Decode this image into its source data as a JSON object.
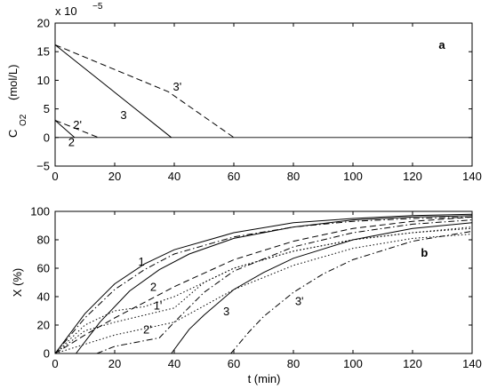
{
  "chart_data": [
    {
      "type": "line",
      "panel_label": "a",
      "ylabel_main": "C",
      "ylabel_sub": "O2",
      "ylabel_unit": "(mol/L)",
      "y_multiplier": "x 10",
      "y_multiplier_exp": "−5",
      "xlim": [
        0,
        140
      ],
      "ylim": [
        -5,
        20
      ],
      "xticks": [
        "0",
        "20",
        "40",
        "60",
        "80",
        "100",
        "120",
        "140"
      ],
      "yticks": [
        "−5",
        "0",
        "5",
        "10",
        "15",
        "20"
      ],
      "xtick_values": [
        0,
        20,
        40,
        60,
        80,
        100,
        120,
        140
      ],
      "ytick_values": [
        -5,
        0,
        5,
        10,
        15,
        20
      ],
      "grid": false,
      "zero_line": true,
      "series": [
        {
          "name": "2",
          "style": "solid",
          "x": [
            0,
            6.5
          ],
          "y": [
            3,
            0
          ]
        },
        {
          "name": "2'",
          "style": "dashed",
          "x": [
            0,
            14.5
          ],
          "y": [
            3,
            0
          ]
        },
        {
          "name": "3",
          "style": "solid",
          "x": [
            0,
            39
          ],
          "y": [
            16.2,
            0
          ]
        },
        {
          "name": "3'",
          "style": "dashed",
          "x": [
            0,
            38,
            60
          ],
          "y": [
            16.2,
            8,
            0
          ]
        }
      ],
      "annotations": [
        {
          "text": "2",
          "x": 5.5,
          "y": -1.5
        },
        {
          "text": "2'",
          "x": 7.5,
          "y": 1.5
        },
        {
          "text": "3",
          "x": 23,
          "y": 3.2
        },
        {
          "text": "3'",
          "x": 41,
          "y": 8.2
        }
      ]
    },
    {
      "type": "line",
      "panel_label": "b",
      "xlabel": "t (min)",
      "ylabel": "X (%)",
      "xlim": [
        0,
        140
      ],
      "ylim": [
        0,
        100
      ],
      "xticks": [
        "0",
        "20",
        "40",
        "60",
        "80",
        "100",
        "120",
        "140"
      ],
      "yticks": [
        "0",
        "20",
        "40",
        "60",
        "80",
        "100"
      ],
      "xtick_values": [
        0,
        20,
        40,
        60,
        80,
        100,
        120,
        140
      ],
      "ytick_values": [
        0,
        20,
        40,
        60,
        80,
        100
      ],
      "grid": false,
      "series": [
        {
          "name": "1",
          "style": "solid",
          "x": [
            0,
            10,
            20,
            30,
            40,
            60,
            80,
            100,
            120,
            140
          ],
          "y": [
            0,
            28,
            49,
            63,
            73,
            85,
            92,
            95,
            97,
            98
          ]
        },
        {
          "name": "1'",
          "style": "dashdot",
          "x": [
            0,
            10,
            20,
            30,
            40,
            60,
            80,
            100,
            120,
            140
          ],
          "y": [
            0,
            25,
            45,
            59,
            70,
            82,
            89,
            93,
            95,
            96
          ]
        },
        {
          "name": "2",
          "style": "solid",
          "x": [
            7,
            15,
            25,
            35,
            45,
            60,
            80,
            100,
            120,
            140
          ],
          "y": [
            0,
            22,
            44,
            59,
            70,
            81,
            89,
            94,
            96,
            97
          ]
        },
        {
          "name": "2'",
          "style": "dashdot",
          "x": [
            14,
            20,
            30,
            35,
            40,
            50,
            60,
            80,
            100,
            120,
            140
          ],
          "y": [
            0,
            5,
            9,
            11,
            22,
            43,
            58,
            75,
            85,
            91,
            94
          ]
        },
        {
          "name": "3",
          "style": "solid",
          "x": [
            39,
            45,
            50,
            60,
            70,
            80,
            100,
            120,
            140
          ],
          "y": [
            0,
            17,
            27,
            45,
            57,
            67,
            80,
            88,
            92
          ]
        },
        {
          "name": "3'",
          "style": "dashdot",
          "x": [
            59,
            65,
            70,
            80,
            90,
            100,
            120,
            140
          ],
          "y": [
            0,
            15,
            26,
            43,
            56,
            66,
            79,
            86
          ]
        },
        {
          "name": "",
          "style": "dashed",
          "x": [
            0,
            10,
            20,
            30,
            40,
            60,
            80,
            100,
            120,
            140
          ],
          "y": [
            0,
            13,
            25,
            36,
            47,
            66,
            79,
            88,
            93,
            96
          ]
        },
        {
          "name": "",
          "style": "dotted",
          "x": [
            0,
            10,
            20,
            30,
            40,
            60,
            80,
            100,
            120,
            140
          ],
          "y": [
            0,
            20,
            30,
            33,
            40,
            60,
            72,
            80,
            85,
            89
          ]
        },
        {
          "name": "",
          "style": "dotted",
          "x": [
            0,
            10,
            20,
            30,
            40,
            50,
            60,
            80,
            100,
            120,
            140
          ],
          "y": [
            0,
            16,
            22,
            27,
            32,
            50,
            60,
            72,
            80,
            85,
            88
          ]
        },
        {
          "name": "",
          "style": "dotted",
          "x": [
            0,
            20,
            40,
            60,
            80,
            100,
            120,
            140
          ],
          "y": [
            0,
            13,
            22,
            45,
            62,
            74,
            81,
            84
          ]
        }
      ],
      "annotations": [
        {
          "text": "1",
          "x": 29,
          "y": 62
        },
        {
          "text": "2",
          "x": 33,
          "y": 44
        },
        {
          "text": "1'",
          "x": 34.5,
          "y": 31
        },
        {
          "text": "2'",
          "x": 31,
          "y": 14
        },
        {
          "text": "3",
          "x": 57.5,
          "y": 27
        },
        {
          "text": "3'",
          "x": 82,
          "y": 34
        },
        {
          "text": "b",
          "x": 124,
          "y": 68
        }
      ]
    }
  ]
}
